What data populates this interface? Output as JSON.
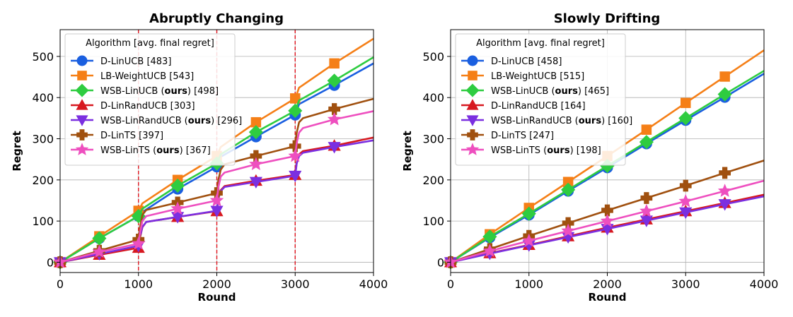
{
  "chart_data": [
    {
      "type": "line",
      "title": "Abruptly Changing",
      "xlabel": "Round",
      "ylabel": "Regret",
      "xlim": [
        0,
        4000
      ],
      "ylim": [
        -25,
        565
      ],
      "x_ticks": [
        0,
        1000,
        2000,
        3000,
        4000
      ],
      "y_ticks": [
        0,
        100,
        200,
        300,
        400,
        500
      ],
      "grid": true,
      "change_points": [
        1000,
        2000,
        3000
      ],
      "legend": {
        "title": "Algorithm [avg. final regret]",
        "placement": "top-left"
      },
      "marker_x": [
        0,
        500,
        1000,
        1500,
        2000,
        2500,
        3000,
        3500
      ],
      "series": [
        {
          "name_pre": "D-LinUCB [483]",
          "name_bold": "",
          "name_post": "",
          "color": "#1a5fe0",
          "marker": "circle",
          "x": [
            0,
            500,
            1000,
            1050,
            1500,
            2000,
            2050,
            2500,
            3000,
            3050,
            3500,
            4000
          ],
          "y": [
            0,
            58,
            112,
            122,
            178,
            232,
            256,
            305,
            358,
            384,
            430,
            483
          ]
        },
        {
          "name_pre": "LB-WeightUCB [543]",
          "name_bold": "",
          "name_post": "",
          "color": "#f57f17",
          "marker": "square",
          "x": [
            0,
            500,
            1000,
            1050,
            1500,
            2000,
            2050,
            2500,
            3000,
            3050,
            3500,
            4000
          ],
          "y": [
            0,
            63,
            125,
            143,
            200,
            258,
            280,
            340,
            398,
            424,
            483,
            543
          ]
        },
        {
          "name_pre": "WSB-LinUCB (",
          "name_bold": "ours",
          "name_post": ") [498]",
          "color": "#2ecc40",
          "marker": "diamond",
          "x": [
            0,
            500,
            1000,
            1050,
            1500,
            2000,
            2050,
            2500,
            3000,
            3050,
            3500,
            4000
          ],
          "y": [
            0,
            58,
            112,
            130,
            186,
            240,
            262,
            316,
            368,
            393,
            441,
            498
          ]
        },
        {
          "name_pre": "D-LinRandUCB [303]",
          "name_bold": "",
          "name_post": "",
          "color": "#d71920",
          "marker": "triangle-up",
          "x": [
            0,
            500,
            1000,
            1020,
            1050,
            1100,
            1500,
            2000,
            2020,
            2050,
            2100,
            2500,
            3000,
            3020,
            3050,
            3100,
            3500,
            4000
          ],
          "y": [
            0,
            18,
            35,
            60,
            85,
            98,
            110,
            124,
            155,
            175,
            185,
            198,
            212,
            242,
            262,
            270,
            283,
            303
          ]
        },
        {
          "name_pre": "WSB-LinRandUCB (",
          "name_bold": "ours",
          "name_post": ") [296]",
          "color": "#7b2fe0",
          "marker": "triangle-down",
          "x": [
            0,
            500,
            1000,
            1020,
            1050,
            1100,
            1500,
            2000,
            2020,
            2050,
            2100,
            2500,
            3000,
            3020,
            3050,
            3100,
            3500,
            4000
          ],
          "y": [
            0,
            20,
            40,
            62,
            86,
            98,
            110,
            125,
            155,
            173,
            183,
            195,
            210,
            240,
            258,
            266,
            280,
            296
          ]
        },
        {
          "name_pre": "D-LinTS [397]",
          "name_bold": "",
          "name_post": "",
          "color": "#a0500f",
          "marker": "plus",
          "x": [
            0,
            500,
            1000,
            1020,
            1050,
            1100,
            1500,
            2000,
            2020,
            2050,
            2100,
            2500,
            3000,
            3020,
            3050,
            3100,
            3500,
            4000
          ],
          "y": [
            0,
            28,
            55,
            85,
            115,
            127,
            145,
            168,
            200,
            225,
            238,
            258,
            282,
            315,
            340,
            350,
            372,
            397
          ]
        },
        {
          "name_pre": "WSB-LinTS (",
          "name_bold": "ours",
          "name_post": ") [367]",
          "color": "#ee4fbf",
          "marker": "star",
          "x": [
            0,
            500,
            1000,
            1020,
            1050,
            1100,
            1500,
            2000,
            2020,
            2050,
            2100,
            2500,
            3000,
            3020,
            3050,
            3100,
            3500,
            4000
          ],
          "y": [
            0,
            25,
            45,
            72,
            100,
            112,
            130,
            150,
            182,
            208,
            218,
            238,
            258,
            290,
            315,
            326,
            347,
            367
          ]
        }
      ]
    },
    {
      "type": "line",
      "title": "Slowly Drifting",
      "xlabel": "Round",
      "ylabel": "Regret",
      "xlim": [
        0,
        4000
      ],
      "ylim": [
        -25,
        565
      ],
      "x_ticks": [
        0,
        1000,
        2000,
        3000,
        4000
      ],
      "y_ticks": [
        0,
        100,
        200,
        300,
        400,
        500
      ],
      "grid": true,
      "change_points": [],
      "legend": {
        "title": "Algorithm [avg. final regret]",
        "placement": "top-left"
      },
      "marker_x": [
        0,
        500,
        1000,
        1500,
        2000,
        2500,
        3000,
        3500
      ],
      "series": [
        {
          "name_pre": "D-LinUCB [458]",
          "name_bold": "",
          "name_post": "",
          "color": "#1a5fe0",
          "marker": "circle",
          "x": [
            0,
            500,
            1000,
            1500,
            2000,
            2500,
            3000,
            3500,
            4000
          ],
          "y": [
            0,
            60,
            115,
            173,
            230,
            288,
            345,
            401,
            458
          ]
        },
        {
          "name_pre": "LB-WeightUCB [515]",
          "name_bold": "",
          "name_post": "",
          "color": "#f57f17",
          "marker": "square",
          "x": [
            0,
            500,
            1000,
            1500,
            2000,
            2500,
            3000,
            3500,
            4000
          ],
          "y": [
            0,
            68,
            132,
            195,
            258,
            322,
            387,
            451,
            515
          ]
        },
        {
          "name_pre": "WSB-LinUCB (",
          "name_bold": "ours",
          "name_post": ") [465]",
          "color": "#2ecc40",
          "marker": "diamond",
          "x": [
            0,
            500,
            1000,
            1500,
            2000,
            2500,
            3000,
            3500,
            4000
          ],
          "y": [
            0,
            62,
            118,
            176,
            234,
            292,
            350,
            408,
            465
          ]
        },
        {
          "name_pre": "D-LinRandUCB [164]",
          "name_bold": "",
          "name_post": "",
          "color": "#d71920",
          "marker": "triangle-up",
          "x": [
            0,
            500,
            1000,
            1500,
            2000,
            2500,
            3000,
            3500,
            4000
          ],
          "y": [
            0,
            22,
            42,
            63,
            84,
            104,
            124,
            144,
            164
          ]
        },
        {
          "name_pre": "WSB-LinRandUCB (",
          "name_bold": "ours",
          "name_post": ") [160]",
          "color": "#7b2fe0",
          "marker": "triangle-down",
          "x": [
            0,
            500,
            1000,
            1500,
            2000,
            2500,
            3000,
            3500,
            4000
          ],
          "y": [
            0,
            21,
            41,
            61,
            81,
            101,
            121,
            141,
            160
          ]
        },
        {
          "name_pre": "D-LinTS [247]",
          "name_bold": "",
          "name_post": "",
          "color": "#a0500f",
          "marker": "plus",
          "x": [
            0,
            500,
            1000,
            1500,
            2000,
            2500,
            3000,
            3500,
            4000
          ],
          "y": [
            0,
            32,
            64,
            95,
            126,
            156,
            186,
            217,
            247
          ]
        },
        {
          "name_pre": "WSB-LinTS (",
          "name_bold": "ours",
          "name_post": ") [198]",
          "color": "#ee4fbf",
          "marker": "star",
          "x": [
            0,
            500,
            1000,
            1500,
            2000,
            2500,
            3000,
            3500,
            4000
          ],
          "y": [
            0,
            27,
            52,
            76,
            100,
            124,
            148,
            173,
            198
          ]
        }
      ]
    }
  ]
}
